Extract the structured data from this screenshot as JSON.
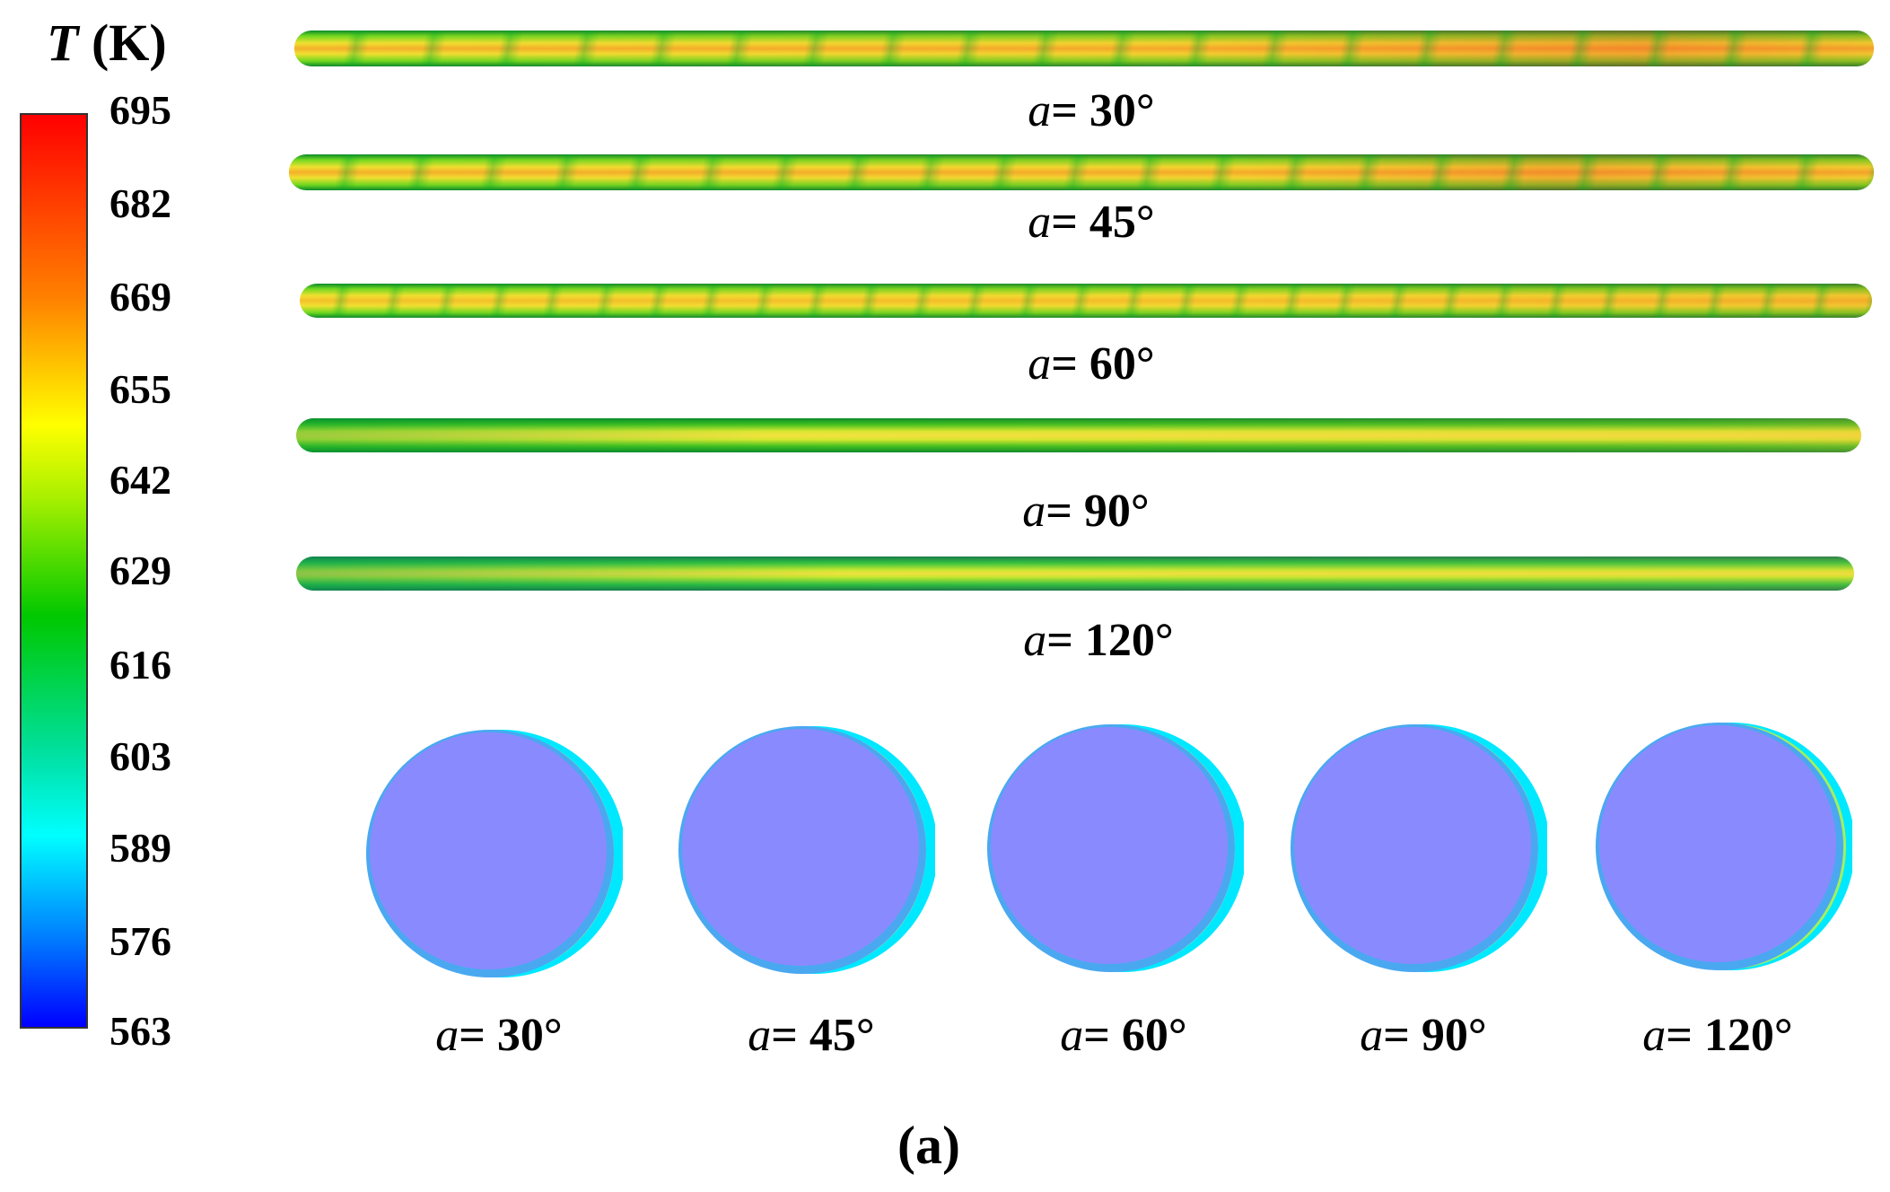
{
  "legend": {
    "symbol": "T",
    "unit": "(K)",
    "ticks": [
      "695",
      "682",
      "669",
      "655",
      "642",
      "629",
      "616",
      "603",
      "589",
      "576",
      "563"
    ],
    "colors": [
      "#ff0000",
      "#ff8000",
      "#ffff00",
      "#00c800",
      "#00ffff",
      "#0000ff"
    ]
  },
  "tubes": [
    {
      "sym": "a",
      "text": "= 30°"
    },
    {
      "sym": "a",
      "text": "= 45°"
    },
    {
      "sym": "a",
      "text": "= 60°"
    },
    {
      "sym": "a",
      "text": "= 90°"
    },
    {
      "sym": "a",
      "text": "= 120°"
    }
  ],
  "cross_sections": [
    {
      "sym": "a",
      "text": "= 30°"
    },
    {
      "sym": "a",
      "text": "= 45°"
    },
    {
      "sym": "a",
      "text": "= 60°"
    },
    {
      "sym": "a",
      "text": "= 90°"
    },
    {
      "sym": "a",
      "text": "= 120°"
    }
  ],
  "panel_label": "(a)"
}
